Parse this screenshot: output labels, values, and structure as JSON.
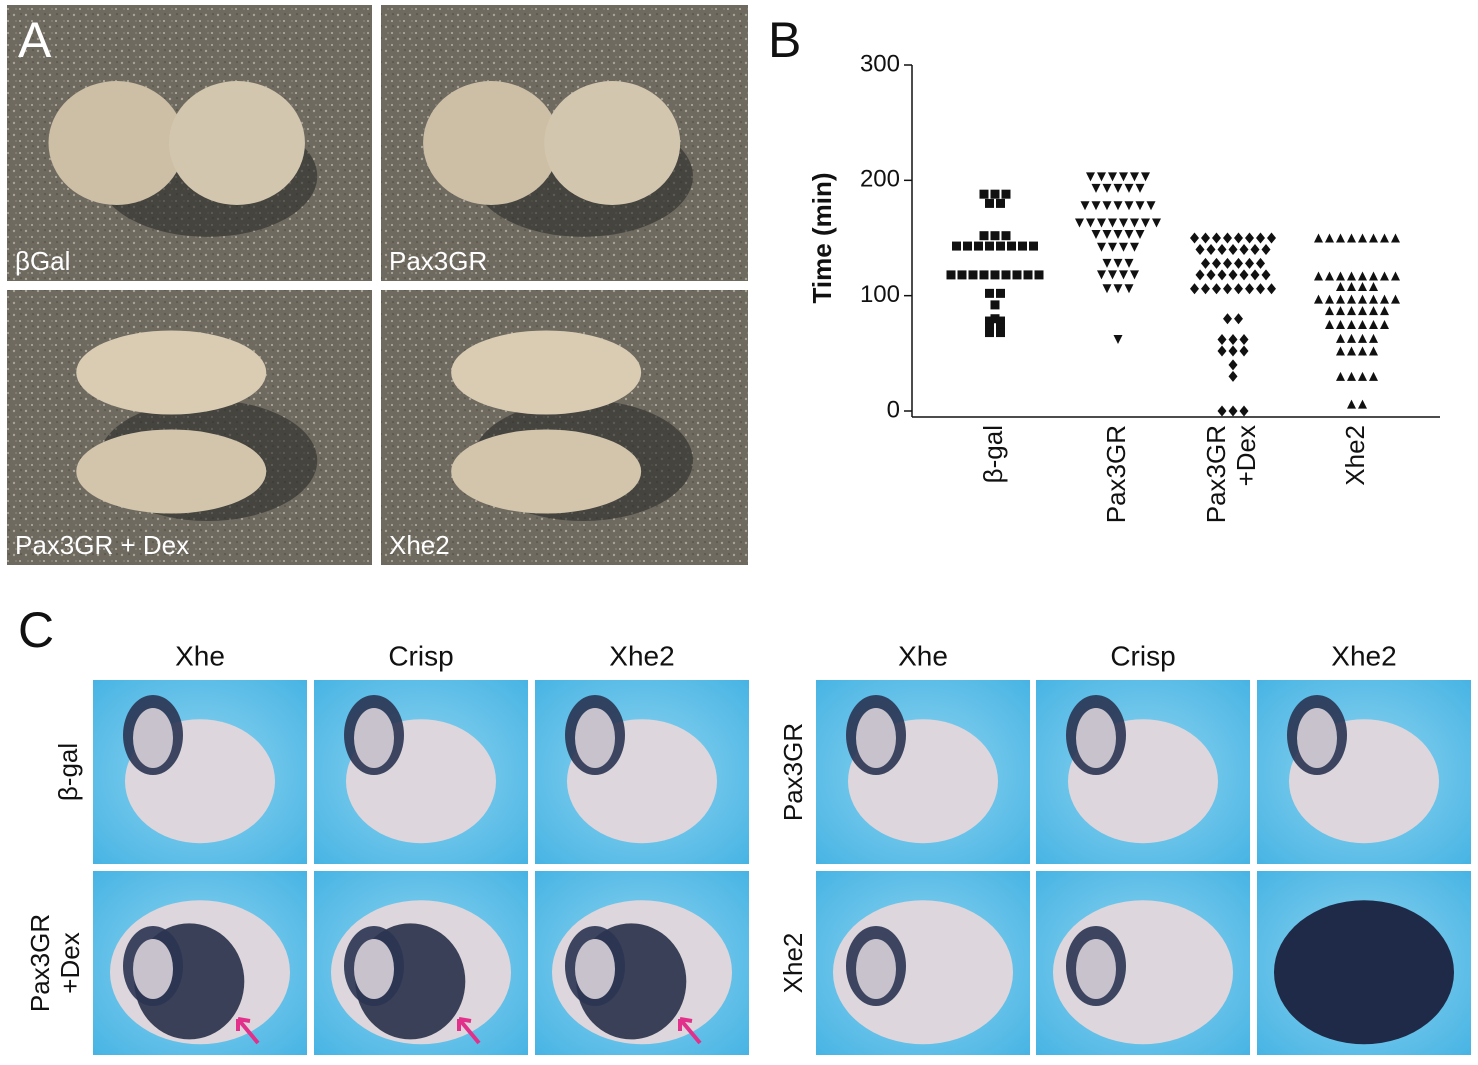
{
  "panel_a": {
    "letter": "A",
    "labels": [
      "βGal",
      "Pax3GR",
      "Pax3GR + Dex",
      "Xhe2"
    ]
  },
  "chart_data": {
    "type": "dotplot",
    "letter": "B",
    "y_label": "Time (min)",
    "categories": [
      [
        "β-gal"
      ],
      [
        "Pax3GR"
      ],
      [
        "Pax3GR",
        "+Dex"
      ],
      [
        "Xhe2"
      ]
    ],
    "markers": [
      "square",
      "triangle-down",
      "diamond",
      "triangle-up"
    ],
    "color": "#111111",
    "values": [
      [
        188,
        188,
        188,
        180,
        180,
        152,
        152,
        152,
        143,
        143,
        143,
        143,
        143,
        143,
        143,
        143,
        118,
        118,
        118,
        118,
        118,
        118,
        118,
        118,
        118,
        102,
        102,
        92,
        80,
        78,
        78,
        72,
        72,
        68,
        68
      ],
      [
        203,
        203,
        203,
        203,
        203,
        203,
        193,
        193,
        193,
        193,
        193,
        178,
        178,
        178,
        178,
        178,
        178,
        178,
        163,
        163,
        163,
        163,
        163,
        163,
        163,
        163,
        153,
        153,
        153,
        153,
        153,
        142,
        142,
        142,
        142,
        128,
        128,
        128,
        118,
        118,
        118,
        118,
        106,
        106,
        106,
        62
      ],
      [
        150,
        150,
        150,
        150,
        150,
        150,
        150,
        150,
        140,
        140,
        140,
        140,
        140,
        140,
        140,
        128,
        128,
        128,
        128,
        128,
        128,
        118,
        118,
        118,
        118,
        118,
        118,
        118,
        106,
        106,
        106,
        106,
        106,
        106,
        106,
        106,
        80,
        80,
        62,
        62,
        62,
        52,
        52,
        52,
        40,
        30,
        0,
        0,
        0
      ],
      [
        150,
        150,
        150,
        150,
        150,
        150,
        150,
        150,
        117,
        117,
        117,
        117,
        117,
        117,
        117,
        117,
        108,
        108,
        108,
        108,
        97,
        97,
        97,
        97,
        97,
        97,
        97,
        97,
        87,
        87,
        87,
        87,
        87,
        87,
        75,
        75,
        75,
        75,
        75,
        75,
        63,
        63,
        63,
        63,
        52,
        52,
        52,
        52,
        30,
        30,
        30,
        30,
        6,
        6
      ]
    ],
    "ylim": [
      0,
      300
    ],
    "yticks": [
      0,
      100,
      200,
      300
    ]
  },
  "panel_c": {
    "letter": "C",
    "groups": [
      {
        "columns": [
          "Xhe",
          "Crisp",
          "Xhe2"
        ],
        "rows": [
          [
            "β-gal"
          ],
          [
            "Pax3GR",
            "+Dex"
          ]
        ]
      },
      {
        "columns": [
          "Xhe",
          "Crisp",
          "Xhe2"
        ],
        "rows": [
          [
            "Pax3GR"
          ],
          [
            "Xhe2"
          ]
        ]
      }
    ]
  }
}
